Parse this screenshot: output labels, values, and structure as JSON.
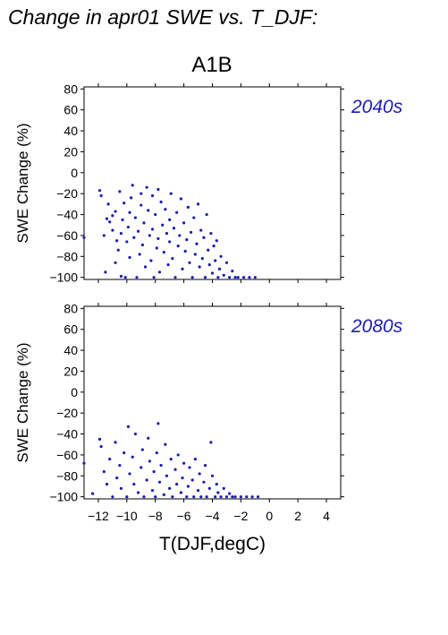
{
  "figure": {
    "title": "Change in apr01 SWE vs. T_DJF:",
    "scenario": "A1B"
  },
  "chart_data": [
    {
      "type": "scatter",
      "panel_label": "2040s",
      "xlabel": "",
      "ylabel": "SWE Change (%)",
      "xlim": [
        -13,
        5
      ],
      "ylim": [
        -102,
        82
      ],
      "yticks": [
        80,
        60,
        40,
        20,
        0,
        -20,
        -40,
        -60,
        -80,
        -100
      ],
      "xticks": [
        -12,
        -10,
        -8,
        -6,
        -4,
        -2,
        0,
        2,
        4
      ],
      "x_tick_labels_shown": false,
      "grid": false,
      "color": "#1c1cb4",
      "points": [
        [
          -13.0,
          -62
        ],
        [
          -11.9,
          -17
        ],
        [
          -11.8,
          -22
        ],
        [
          -11.6,
          -60
        ],
        [
          -11.5,
          -95
        ],
        [
          -11.4,
          -44
        ],
        [
          -11.3,
          -30
        ],
        [
          -11.2,
          -47
        ],
        [
          -11.0,
          -55
        ],
        [
          -11.0,
          -41
        ],
        [
          -10.8,
          -37
        ],
        [
          -10.8,
          -86
        ],
        [
          -10.7,
          -65
        ],
        [
          -10.6,
          -74
        ],
        [
          -10.5,
          -18
        ],
        [
          -10.4,
          -58
        ],
        [
          -10.4,
          -99
        ],
        [
          -10.3,
          -45
        ],
        [
          -10.2,
          -29
        ],
        [
          -10.1,
          -100
        ],
        [
          -10.0,
          -66
        ],
        [
          -9.9,
          -52
        ],
        [
          -9.8,
          -38
        ],
        [
          -9.8,
          -81
        ],
        [
          -9.7,
          -24
        ],
        [
          -9.6,
          -12
        ],
        [
          -9.5,
          -62
        ],
        [
          -9.4,
          -43
        ],
        [
          -9.3,
          -100
        ],
        [
          -9.2,
          -56
        ],
        [
          -9.1,
          -78
        ],
        [
          -9.0,
          -31
        ],
        [
          -9.0,
          -20
        ],
        [
          -8.9,
          -69
        ],
        [
          -8.8,
          -48
        ],
        [
          -8.7,
          -90
        ],
        [
          -8.6,
          -14
        ],
        [
          -8.5,
          -36
        ],
        [
          -8.4,
          -60
        ],
        [
          -8.3,
          -84
        ],
        [
          -8.2,
          -22
        ],
        [
          -8.2,
          -54
        ],
        [
          -8.1,
          -100
        ],
        [
          -8.0,
          -40
        ],
        [
          -7.9,
          -72
        ],
        [
          -7.8,
          -16
        ],
        [
          -7.8,
          -63
        ],
        [
          -7.7,
          -95
        ],
        [
          -7.6,
          -28
        ],
        [
          -7.5,
          -50
        ],
        [
          -7.4,
          -76
        ],
        [
          -7.3,
          -35
        ],
        [
          -7.2,
          -58
        ],
        [
          -7.1,
          -88
        ],
        [
          -7.0,
          -45
        ],
        [
          -7.0,
          -66
        ],
        [
          -6.9,
          -20
        ],
        [
          -6.8,
          -82
        ],
        [
          -6.7,
          -53
        ],
        [
          -6.6,
          -100
        ],
        [
          -6.5,
          -38
        ],
        [
          -6.4,
          -70
        ],
        [
          -6.3,
          -60
        ],
        [
          -6.2,
          -25
        ],
        [
          -6.1,
          -92
        ],
        [
          -6.0,
          -48
        ],
        [
          -5.9,
          -75
        ],
        [
          -5.8,
          -64
        ],
        [
          -5.7,
          -33
        ],
        [
          -5.6,
          -86
        ],
        [
          -5.5,
          -57
        ],
        [
          -5.4,
          -100
        ],
        [
          -5.3,
          -43
        ],
        [
          -5.2,
          -78
        ],
        [
          -5.1,
          -68
        ],
        [
          -5.0,
          -30
        ],
        [
          -4.9,
          -90
        ],
        [
          -4.8,
          -55
        ],
        [
          -4.7,
          -82
        ],
        [
          -4.6,
          -62
        ],
        [
          -4.5,
          -100
        ],
        [
          -4.4,
          -40
        ],
        [
          -4.3,
          -74
        ],
        [
          -4.2,
          -88
        ],
        [
          -4.1,
          -58
        ],
        [
          -4.0,
          -96
        ],
        [
          -3.9,
          -70
        ],
        [
          -3.8,
          -84
        ],
        [
          -3.7,
          -65
        ],
        [
          -3.6,
          -100
        ],
        [
          -3.5,
          -92
        ],
        [
          -3.4,
          -80
        ],
        [
          -3.2,
          -98
        ],
        [
          -3.0,
          -86
        ],
        [
          -2.8,
          -100
        ],
        [
          -2.6,
          -94
        ],
        [
          -2.4,
          -100
        ],
        [
          -2.2,
          -100
        ],
        [
          -1.8,
          -100
        ],
        [
          -1.4,
          -100
        ],
        [
          -1.0,
          -100
        ]
      ]
    },
    {
      "type": "scatter",
      "panel_label": "2080s",
      "xlabel": "T(DJF,degC)",
      "ylabel": "SWE Change (%)",
      "xlim": [
        -13,
        5
      ],
      "ylim": [
        -102,
        82
      ],
      "yticks": [
        80,
        60,
        40,
        20,
        0,
        -20,
        -40,
        -60,
        -80,
        -100
      ],
      "xticks": [
        -12,
        -10,
        -8,
        -6,
        -4,
        -2,
        0,
        2,
        4
      ],
      "x_tick_labels_shown": true,
      "grid": false,
      "color": "#1c1cb4",
      "points": [
        [
          -13.0,
          -68
        ],
        [
          -12.4,
          -97
        ],
        [
          -11.9,
          -45
        ],
        [
          -11.8,
          -52
        ],
        [
          -11.6,
          -76
        ],
        [
          -11.4,
          -88
        ],
        [
          -11.2,
          -64
        ],
        [
          -11.0,
          -100
        ],
        [
          -10.8,
          -48
        ],
        [
          -10.7,
          -82
        ],
        [
          -10.5,
          -70
        ],
        [
          -10.4,
          -92
        ],
        [
          -10.2,
          -58
        ],
        [
          -10.0,
          -100
        ],
        [
          -9.9,
          -33
        ],
        [
          -9.8,
          -78
        ],
        [
          -9.6,
          -62
        ],
        [
          -9.5,
          -88
        ],
        [
          -9.4,
          -40
        ],
        [
          -9.2,
          -96
        ],
        [
          -9.0,
          -72
        ],
        [
          -8.9,
          -55
        ],
        [
          -8.8,
          -100
        ],
        [
          -8.6,
          -84
        ],
        [
          -8.5,
          -44
        ],
        [
          -8.4,
          -66
        ],
        [
          -8.2,
          -94
        ],
        [
          -8.1,
          -76
        ],
        [
          -8.0,
          -100
        ],
        [
          -7.9,
          -58
        ],
        [
          -7.8,
          -30
        ],
        [
          -7.7,
          -86
        ],
        [
          -7.6,
          -70
        ],
        [
          -7.4,
          -98
        ],
        [
          -7.3,
          -50
        ],
        [
          -7.2,
          -80
        ],
        [
          -7.0,
          -92
        ],
        [
          -6.9,
          -64
        ],
        [
          -6.8,
          -100
        ],
        [
          -6.6,
          -74
        ],
        [
          -6.5,
          -88
        ],
        [
          -6.4,
          -60
        ],
        [
          -6.2,
          -96
        ],
        [
          -6.1,
          -82
        ],
        [
          -6.0,
          -68
        ],
        [
          -5.8,
          -100
        ],
        [
          -5.7,
          -90
        ],
        [
          -5.6,
          -72
        ],
        [
          -5.4,
          -84
        ],
        [
          -5.3,
          -100
        ],
        [
          -5.2,
          -64
        ],
        [
          -5.0,
          -94
        ],
        [
          -4.9,
          -78
        ],
        [
          -4.8,
          -100
        ],
        [
          -4.6,
          -86
        ],
        [
          -4.5,
          -70
        ],
        [
          -4.4,
          -100
        ],
        [
          -4.2,
          -92
        ],
        [
          -4.1,
          -48
        ],
        [
          -4.0,
          -80
        ],
        [
          -3.8,
          -100
        ],
        [
          -3.7,
          -88
        ],
        [
          -3.6,
          -96
        ],
        [
          -3.4,
          -100
        ],
        [
          -3.2,
          -92
        ],
        [
          -3.0,
          -100
        ],
        [
          -2.8,
          -97
        ],
        [
          -2.6,
          -100
        ],
        [
          -2.4,
          -100
        ],
        [
          -2.0,
          -100
        ],
        [
          -1.6,
          -100
        ],
        [
          -1.2,
          -100
        ],
        [
          -0.8,
          -100
        ]
      ]
    }
  ]
}
